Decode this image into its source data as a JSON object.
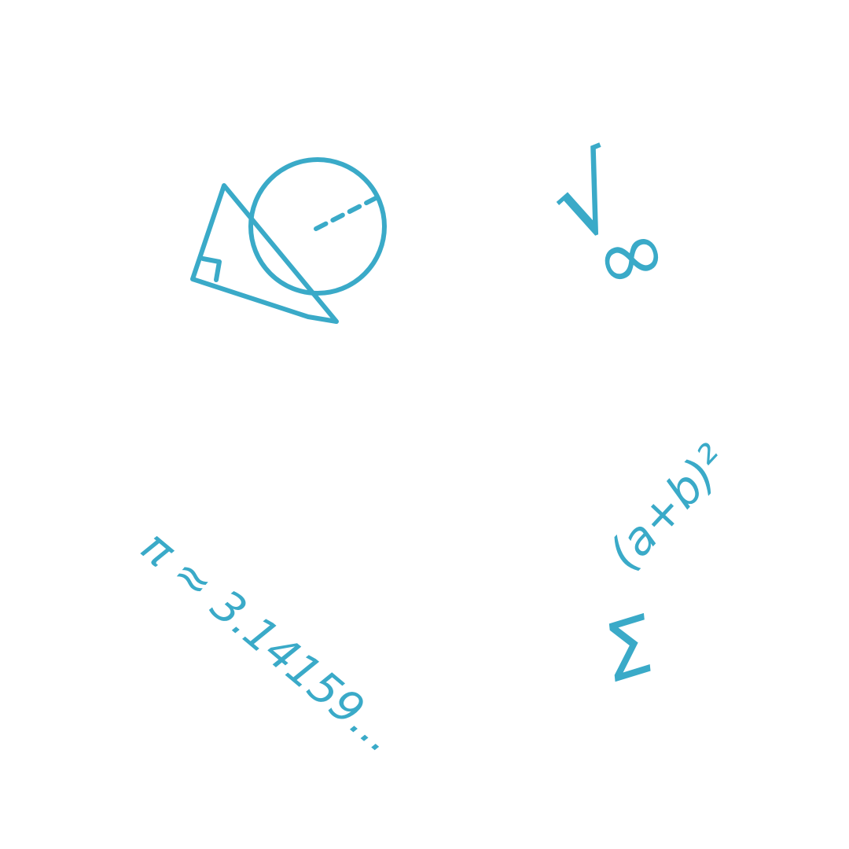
{
  "ink_color": "#3aaac8",
  "background_color": "#ffffff",
  "symbols": {
    "infinity": "∞",
    "sqrt": "√",
    "sigma": "Σ",
    "pi_value": "π ≈ 3.14159...",
    "a_plus_b_squared": "(a+b)²"
  },
  "icons": {
    "geometry": "triangle-circle-icon"
  }
}
